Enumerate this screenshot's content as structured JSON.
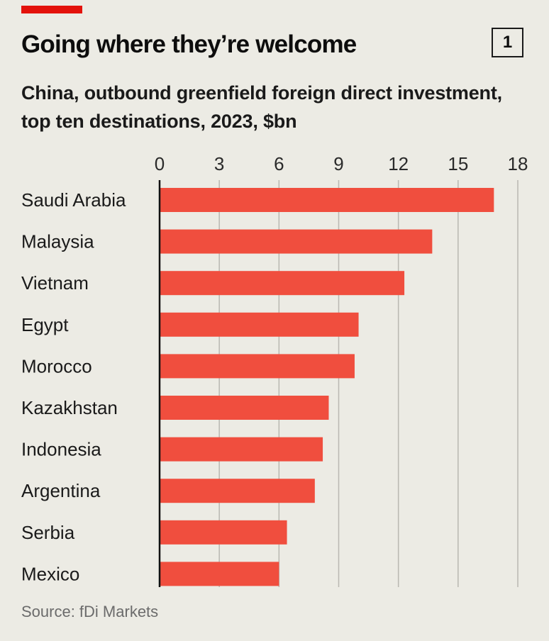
{
  "header": {
    "title": "Going where they’re welcome",
    "chart_number": "1",
    "subtitle": "China, outbound greenfield foreign direct investment, top ten destinations, 2023, $bn"
  },
  "footer": {
    "source": "Source: fDi Markets"
  },
  "colors": {
    "bar": "#f04e3e",
    "accent": "#e3120b",
    "background": "#ecebe4",
    "gridline": "#b9b8b1",
    "axis": "#111111"
  },
  "chart_data": {
    "type": "bar",
    "orientation": "horizontal",
    "title": "Going where they’re welcome",
    "subtitle": "China, outbound greenfield foreign direct investment, top ten destinations, 2023, $bn",
    "xlabel": "",
    "ylabel": "",
    "categories": [
      "Saudi Arabia",
      "Malaysia",
      "Vietnam",
      "Egypt",
      "Morocco",
      "Kazakhstan",
      "Indonesia",
      "Argentina",
      "Serbia",
      "Mexico"
    ],
    "values": [
      16.8,
      13.7,
      12.3,
      10.0,
      9.8,
      8.5,
      8.2,
      7.8,
      6.4,
      6.0
    ],
    "xlim": [
      0,
      18
    ],
    "xticks": [
      "0",
      "3",
      "6",
      "9",
      "12",
      "15",
      "18"
    ],
    "grid": true,
    "tick_position": "top"
  }
}
